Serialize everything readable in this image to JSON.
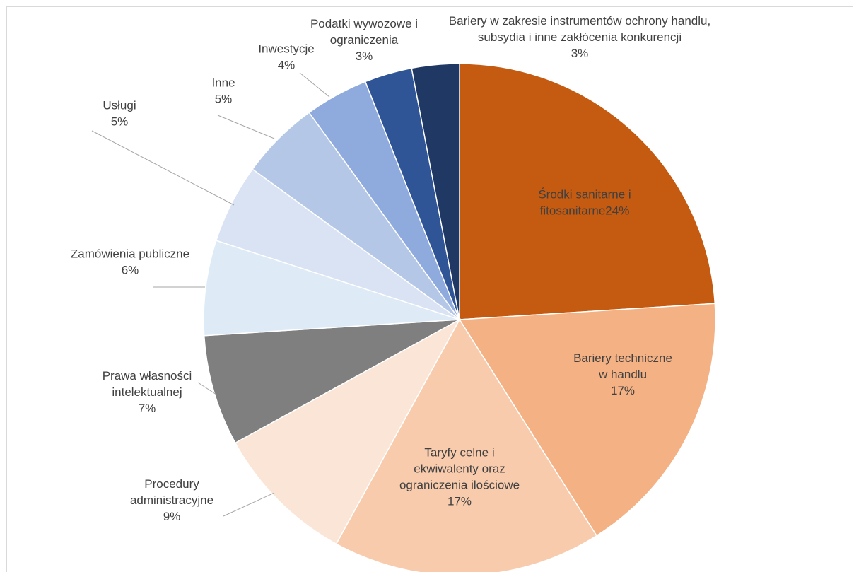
{
  "chart_data": {
    "type": "pie",
    "title": "",
    "start_angle_deg": 0,
    "direction": "clockwise",
    "slices": [
      {
        "label": "Środki sanitarne i fitosanitarne",
        "value": 24,
        "pct": "24%",
        "color": "#C55A11"
      },
      {
        "label": "Bariery techniczne w handlu",
        "value": 17,
        "pct": "17%",
        "color": "#F4B183"
      },
      {
        "label": "Taryfy celne i ekwiwalenty oraz ograniczenia ilościowe",
        "value": 17,
        "pct": "17%",
        "color": "#F8CBAD"
      },
      {
        "label": "Procedury administracyjne",
        "value": 9,
        "pct": "9%",
        "color": "#FBE5D6"
      },
      {
        "label": "Prawa własności intelektualnej",
        "value": 7,
        "pct": "7%",
        "color": "#7F7F7F"
      },
      {
        "label": "Zamówienia publiczne",
        "value": 6,
        "pct": "6%",
        "color": "#DEEBF7"
      },
      {
        "label": "Usługi",
        "value": 5,
        "pct": "5%",
        "color": "#DAE3F3"
      },
      {
        "label": "Inne",
        "value": 5,
        "pct": "5%",
        "color": "#B4C7E7"
      },
      {
        "label": "Inwestycje",
        "value": 4,
        "pct": "4%",
        "color": "#8FAADC"
      },
      {
        "label": "Podatki wywozowe i ograniczenia",
        "value": 3,
        "pct": "3%",
        "color": "#2F5597"
      },
      {
        "label": "Bariery w zakresie instrumentów ochrony handlu, subsydia i inne zakłócenia konkurencji",
        "value": 3,
        "pct": "3%",
        "color": "#203864"
      }
    ],
    "label_lines": [
      [
        "Środki sanitarne i",
        "fitosanitarne24%"
      ],
      [
        "Bariery techniczne",
        "w handlu",
        "17%"
      ],
      [
        "Taryfy celne i",
        "ekwiwalenty oraz",
        "ograniczenia ilościowe",
        "17%"
      ],
      [
        "Procedury",
        "administracyjne",
        "9%"
      ],
      [
        "Prawa własności",
        "intelektualnej",
        "7%"
      ],
      [
        "Zamówienia publiczne",
        "6%"
      ],
      [
        "Usługi",
        "5%"
      ],
      [
        "Inne",
        "5%"
      ],
      [
        "Inwestycje",
        "4%"
      ],
      [
        "Podatki wywozowe i",
        "ograniczenia",
        "3%"
      ],
      [
        "Bariery w zakresie instrumentów ochrony handlu,",
        "subsydia i inne zakłócenia konkurencji",
        "3%"
      ]
    ]
  }
}
